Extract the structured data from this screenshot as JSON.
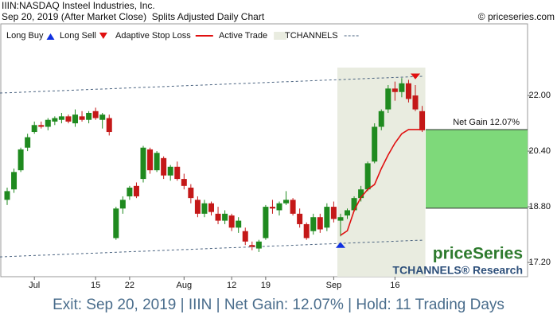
{
  "chart_data": {
    "type": "candlestick",
    "title": "IIIN:NASDAQ Insteel Industries, Inc.",
    "subtitle": "Sep 20, 2019 (After Market Close)  Splits Adjusted Daily Chart",
    "copyright": "© priceseries.com",
    "legend": [
      "Long Buy",
      "Long Sell",
      "Adaptive Stop Loss",
      "Active Trade",
      "TCHANNELS"
    ],
    "annotation": "Net Gain 12.07%",
    "watermark": "priceSeries",
    "watermark_sub": "TCHANNELS® Research",
    "footer": "Exit: Sep 20, 2019 | IIIN | Net Gain: 12.07% | Hold: 11 Trading Days",
    "up_color": "#1f8a1f",
    "down_color": "#c41818",
    "stop_color": "#e01010",
    "categories": [
      null,
      null,
      null,
      null,
      "Jul",
      null,
      null,
      null,
      null,
      null,
      null,
      null,
      null,
      "15",
      null,
      null,
      null,
      null,
      "22",
      null,
      null,
      null,
      null,
      null,
      null,
      null,
      "Aug",
      null,
      null,
      null,
      null,
      null,
      null,
      "12",
      null,
      null,
      null,
      null,
      "19",
      null,
      null,
      null,
      null,
      null,
      null,
      null,
      null,
      null,
      "Sep",
      null,
      null,
      null,
      null,
      null,
      null,
      null,
      null,
      "16",
      null,
      null,
      null,
      null
    ],
    "open": [
      19.0,
      19.3,
      19.85,
      20.5,
      20.95,
      21.15,
      21.1,
      21.25,
      21.3,
      21.4,
      21.2,
      21.4,
      21.3,
      21.55,
      21.3,
      21.35,
      17.9,
      18.75,
      19.1,
      19.4,
      19.6,
      20.45,
      19.85,
      20.2,
      19.7,
      19.95,
      19.6,
      19.35,
      19.0,
      18.6,
      18.9,
      18.6,
      18.4,
      18.55,
      18.2,
      18.1,
      17.7,
      17.6,
      17.9,
      18.8,
      18.7,
      18.9,
      19.0,
      18.6,
      18.3,
      18.1,
      18.5,
      18.2,
      18.8,
      18.4,
      18.55,
      18.7,
      19.05,
      19.3,
      20.1,
      21.1,
      21.6,
      22.2,
      22.1,
      22.35,
      22.0,
      21.55
    ],
    "high": [
      19.35,
      19.9,
      20.5,
      20.9,
      21.25,
      21.25,
      21.35,
      21.4,
      21.5,
      21.45,
      21.6,
      21.55,
      21.55,
      21.65,
      21.5,
      21.45,
      18.8,
      19.1,
      19.4,
      19.5,
      20.55,
      20.5,
      20.4,
      20.25,
      20.0,
      20.1,
      19.75,
      19.45,
      19.1,
      19.0,
      18.95,
      18.8,
      18.7,
      18.6,
      18.5,
      18.2,
      17.8,
      17.85,
      18.85,
      19.0,
      18.95,
      19.25,
      19.05,
      18.75,
      18.35,
      18.6,
      18.6,
      18.9,
      18.95,
      18.6,
      18.75,
      19.1,
      19.4,
      20.1,
      21.2,
      21.6,
      22.3,
      22.4,
      22.5,
      22.45,
      22.3,
      21.7
    ],
    "low": [
      18.85,
      19.2,
      19.8,
      20.4,
      20.9,
      21.05,
      21.0,
      21.15,
      21.2,
      21.2,
      21.1,
      21.25,
      21.2,
      21.3,
      21.05,
      20.85,
      17.85,
      18.6,
      19.0,
      19.05,
      19.5,
      19.75,
      19.8,
      19.6,
      19.55,
      19.55,
      19.3,
      18.9,
      18.5,
      18.5,
      18.55,
      18.3,
      18.3,
      18.1,
      18.05,
      17.7,
      17.55,
      17.5,
      17.85,
      18.6,
      18.55,
      18.85,
      18.55,
      18.2,
      17.85,
      18.0,
      18.05,
      18.1,
      18.35,
      17.95,
      18.45,
      18.65,
      18.95,
      19.25,
      20.05,
      21.0,
      21.5,
      21.85,
      21.95,
      21.8,
      21.55,
      20.95
    ],
    "close": [
      19.25,
      19.8,
      20.45,
      20.8,
      21.15,
      21.1,
      21.3,
      21.35,
      21.4,
      21.25,
      21.45,
      21.3,
      21.5,
      21.35,
      21.45,
      20.95,
      18.75,
      19.0,
      19.35,
      19.1,
      20.5,
      19.85,
      20.35,
      19.7,
      19.95,
      19.6,
      19.4,
      19.05,
      18.6,
      18.9,
      18.65,
      18.4,
      18.6,
      18.2,
      18.4,
      17.8,
      17.65,
      17.8,
      18.8,
      18.75,
      18.9,
      19.0,
      18.6,
      18.3,
      17.9,
      18.5,
      18.15,
      18.8,
      18.45,
      18.5,
      18.7,
      19.05,
      19.3,
      20.05,
      21.1,
      21.55,
      22.2,
      22.1,
      22.35,
      21.9,
      21.6,
      21.0
    ],
    "stop_loss": [
      null,
      null,
      null,
      null,
      null,
      null,
      null,
      null,
      null,
      null,
      null,
      null,
      null,
      null,
      null,
      null,
      null,
      null,
      null,
      null,
      null,
      null,
      null,
      null,
      null,
      null,
      null,
      null,
      null,
      null,
      null,
      null,
      null,
      null,
      null,
      null,
      null,
      null,
      null,
      null,
      null,
      null,
      null,
      null,
      null,
      null,
      null,
      null,
      null,
      17.98,
      18.11,
      18.69,
      19.07,
      19.3,
      19.44,
      19.9,
      20.29,
      20.63,
      20.9,
      21.02,
      21.02,
      21.02
    ],
    "channel_upper": [
      22.07,
      22.55
    ],
    "channel_lower": [
      17.36,
      17.84
    ],
    "entry_price": 18.76,
    "exit_price": 21.02,
    "ylim": [
      16.79,
      24.06
    ],
    "yticks": [
      {
        "value": 17.2,
        "label": "17.20"
      },
      {
        "value": 18.8,
        "label": "18.80"
      },
      {
        "value": 20.4,
        "label": "20.40"
      },
      {
        "value": 22,
        "label": "22.00"
      }
    ],
    "grid": false
  }
}
